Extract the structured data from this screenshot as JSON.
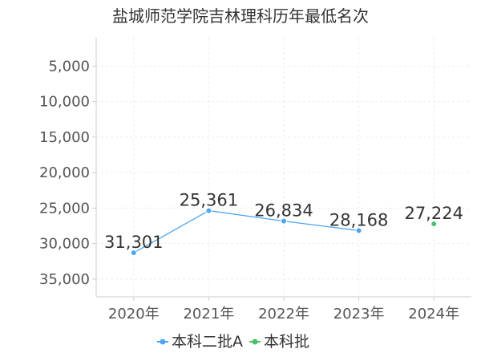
{
  "chart_data": {
    "type": "line",
    "title": "盐城师范学院吉林理科历年最低名次",
    "xlabel": "",
    "ylabel": "",
    "categories": [
      "2020年",
      "2021年",
      "2022年",
      "2023年",
      "2024年"
    ],
    "y_inverted": true,
    "ylim": [
      37500,
      1000
    ],
    "yticks": [
      5000,
      10000,
      15000,
      20000,
      25000,
      30000,
      35000
    ],
    "ytick_labels": [
      "5,000",
      "10,000",
      "15,000",
      "20,000",
      "25,000",
      "30,000",
      "35,000"
    ],
    "grid": true,
    "legend_position": "bottom",
    "series": [
      {
        "name": "本科二批A",
        "color": "#4da6f0",
        "values": [
          31301,
          25361,
          26834,
          28168,
          null
        ],
        "labels": [
          "31,301",
          "25,361",
          "26,834",
          "28,168",
          ""
        ]
      },
      {
        "name": "本科批",
        "color": "#4cbf6b",
        "values": [
          null,
          null,
          null,
          null,
          27224
        ],
        "labels": [
          "",
          "",
          "",
          "",
          "27,224"
        ]
      }
    ]
  }
}
